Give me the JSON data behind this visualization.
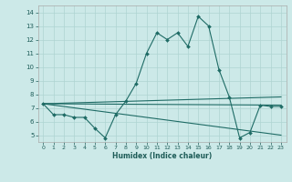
{
  "xlabel": "Humidex (Indice chaleur)",
  "bg_color": "#cce9e8",
  "grid_color": "#aed4d2",
  "line_color": "#1e6b65",
  "xlim": [
    -0.5,
    23.5
  ],
  "ylim": [
    4.5,
    14.5
  ],
  "yticks": [
    5,
    6,
    7,
    8,
    9,
    10,
    11,
    12,
    13,
    14
  ],
  "xticks": [
    0,
    1,
    2,
    3,
    4,
    5,
    6,
    7,
    8,
    9,
    10,
    11,
    12,
    13,
    14,
    15,
    16,
    17,
    18,
    19,
    20,
    21,
    22,
    23
  ],
  "line1_x": [
    0,
    1,
    2,
    3,
    4,
    5,
    6,
    7,
    8,
    9,
    10,
    11,
    12,
    13,
    14,
    15,
    16,
    17,
    18,
    19,
    20,
    21,
    22,
    23
  ],
  "line1_y": [
    7.3,
    6.5,
    6.5,
    6.3,
    6.3,
    5.5,
    4.8,
    6.5,
    7.5,
    8.8,
    11.0,
    12.5,
    12.0,
    12.5,
    11.5,
    13.7,
    13.0,
    9.8,
    7.8,
    4.8,
    5.2,
    7.2,
    7.1,
    7.1
  ],
  "line2_x": [
    0,
    23
  ],
  "line2_y": [
    7.3,
    7.8
  ],
  "line3_x": [
    0,
    23
  ],
  "line3_y": [
    7.3,
    7.2
  ],
  "line4_x": [
    0,
    23
  ],
  "line4_y": [
    7.3,
    5.0
  ]
}
